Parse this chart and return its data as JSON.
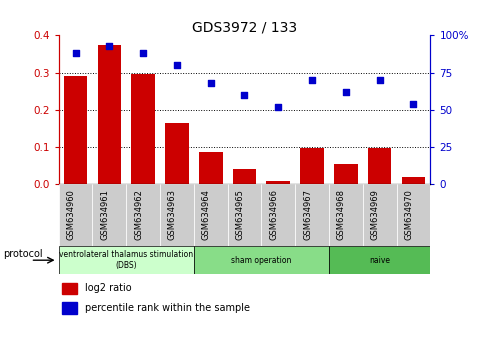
{
  "title": "GDS3972 / 133",
  "categories": [
    "GSM634960",
    "GSM634961",
    "GSM634962",
    "GSM634963",
    "GSM634964",
    "GSM634965",
    "GSM634966",
    "GSM634967",
    "GSM634968",
    "GSM634969",
    "GSM634970"
  ],
  "log2_ratio": [
    0.29,
    0.375,
    0.295,
    0.165,
    0.085,
    0.04,
    0.008,
    0.097,
    0.055,
    0.097,
    0.02
  ],
  "percentile_rank": [
    88,
    93,
    88,
    80,
    68,
    60,
    52,
    70,
    62,
    70,
    54
  ],
  "bar_color": "#cc0000",
  "scatter_color": "#0000cc",
  "ylim_left": [
    0,
    0.4
  ],
  "ylim_right": [
    0,
    100
  ],
  "yticks_left": [
    0,
    0.1,
    0.2,
    0.3,
    0.4
  ],
  "yticks_right": [
    0,
    25,
    50,
    75,
    100
  ],
  "ytick_labels_right": [
    "0",
    "25",
    "50",
    "75",
    "100%"
  ],
  "groups": [
    {
      "label": "ventrolateral thalamus stimulation\n(DBS)",
      "start": 0,
      "end": 3,
      "color": "#ccffcc"
    },
    {
      "label": "sham operation",
      "start": 4,
      "end": 7,
      "color": "#88dd88"
    },
    {
      "label": "naive",
      "start": 8,
      "end": 10,
      "color": "#55bb55"
    }
  ],
  "protocol_label": "protocol",
  "legend_bar_label": "log2 ratio",
  "legend_scatter_label": "percentile rank within the sample",
  "background_color": "#ffffff",
  "tick_label_bg": "#cccccc",
  "bar_width": 0.7
}
